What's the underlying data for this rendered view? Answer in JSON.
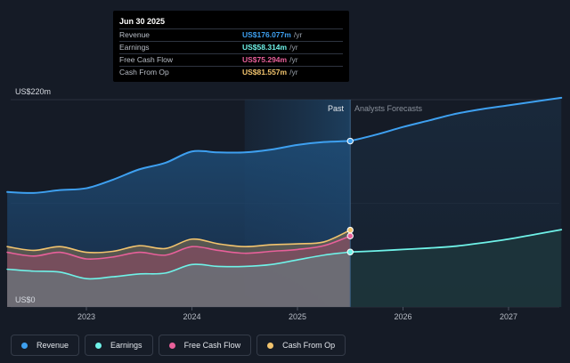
{
  "chart_data": {
    "type": "area",
    "y_max_label": "US$220m",
    "y_min_label": "US$0",
    "ylim": [
      0,
      220
    ],
    "past_label": "Past",
    "forecast_label": "Analysts Forecasts",
    "x_ticks": [
      "2023",
      "2024",
      "2025",
      "2026",
      "2027"
    ],
    "tooltip": {
      "date": "Jun 30 2025",
      "rows": [
        {
          "label": "Revenue",
          "value": "US$176.077m",
          "unit": "/yr",
          "color": "#3ea0f0"
        },
        {
          "label": "Earnings",
          "value": "US$58.314m",
          "unit": "/yr",
          "color": "#6ff2e8"
        },
        {
          "label": "Free Cash Flow",
          "value": "US$75.294m",
          "unit": "/yr",
          "color": "#e8609a"
        },
        {
          "label": "Cash From Op",
          "value": "US$81.557m",
          "unit": "/yr",
          "color": "#f2c46e"
        }
      ]
    },
    "series": [
      {
        "name": "Revenue",
        "color": "#3ea0f0",
        "x": [
          2022.25,
          2022.5,
          2022.75,
          2023.0,
          2023.25,
          2023.5,
          2023.75,
          2024.0,
          2024.25,
          2024.5,
          2024.75,
          2025.0,
          2025.25,
          2025.5
        ],
        "values": [
          122,
          121,
          124,
          126,
          135,
          146,
          153,
          165,
          164,
          164,
          167,
          172,
          175,
          176.077
        ]
      },
      {
        "name": "Earnings",
        "color": "#6ff2e8",
        "x": [
          2022.25,
          2022.5,
          2022.75,
          2023.0,
          2023.25,
          2023.5,
          2023.75,
          2024.0,
          2024.25,
          2024.5,
          2024.75,
          2025.0,
          2025.25,
          2025.5
        ],
        "values": [
          40,
          38,
          37,
          30,
          32,
          35,
          36,
          45,
          43,
          43,
          45,
          50,
          55,
          58.314
        ]
      },
      {
        "name": "Free Cash Flow",
        "color": "#e8609a",
        "x": [
          2022.25,
          2022.5,
          2022.75,
          2023.0,
          2023.25,
          2023.5,
          2023.75,
          2024.0,
          2024.25,
          2024.5,
          2024.75,
          2025.0,
          2025.25,
          2025.5
        ],
        "values": [
          58,
          54,
          58,
          51,
          53,
          58,
          55,
          64,
          60,
          57,
          59,
          61,
          65,
          75.294
        ]
      },
      {
        "name": "Cash From Op",
        "color": "#f2c46e",
        "x": [
          2022.25,
          2022.5,
          2022.75,
          2023.0,
          2023.25,
          2023.5,
          2023.75,
          2024.0,
          2024.25,
          2024.5,
          2024.75,
          2025.0,
          2025.25,
          2025.5
        ],
        "values": [
          64,
          60,
          64,
          58,
          59,
          65,
          62,
          72,
          67,
          64,
          66,
          67,
          69,
          81.557
        ]
      },
      {
        "name": "Revenue Forecast",
        "color": "#3ea0f0",
        "x": [
          2025.5,
          2025.75,
          2026.0,
          2026.25,
          2026.5,
          2026.75,
          2027.0,
          2027.25,
          2027.5
        ],
        "values": [
          176.077,
          183,
          191,
          198,
          205,
          210,
          214,
          218,
          222
        ]
      },
      {
        "name": "Earnings Forecast",
        "color": "#6ff2e8",
        "x": [
          2025.5,
          2025.75,
          2026.0,
          2026.25,
          2026.5,
          2026.75,
          2027.0,
          2027.25,
          2027.5
        ],
        "values": [
          58.314,
          59.5,
          61,
          62.5,
          64.5,
          68,
          72,
          77,
          82
        ]
      }
    ],
    "past_boundary_x": 2025.5,
    "shaded_band_start_x": 2024.5
  },
  "legend": [
    {
      "label": "Revenue",
      "color": "#3ea0f0"
    },
    {
      "label": "Earnings",
      "color": "#6ff2e8"
    },
    {
      "label": "Free Cash Flow",
      "color": "#e8609a"
    },
    {
      "label": "Cash From Op",
      "color": "#f2c46e"
    }
  ]
}
